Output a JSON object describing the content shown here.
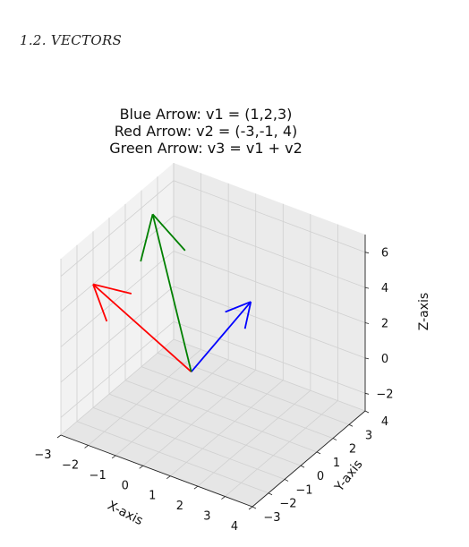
{
  "header": {
    "section": "1.2.   VECTORS"
  },
  "chart_data": {
    "type": "3d-vector",
    "title_lines": [
      "Blue Arrow: v1 = (1,2,3)",
      "Red Arrow: v2 = (-3,-1, 4)",
      "Green Arrow: v3 = v1 + v2"
    ],
    "xlabel": "X-axis",
    "ylabel": "Y-axis",
    "zlabel": "Z-axis",
    "xlim": [
      -3,
      4
    ],
    "ylim": [
      -3,
      4
    ],
    "zlim": [
      -3,
      7
    ],
    "xticks": [
      "−3",
      "−2",
      "−1",
      "0",
      "1",
      "2",
      "3",
      "4"
    ],
    "yticks": [
      "−3",
      "−2",
      "−1",
      "0",
      "1",
      "2",
      "3",
      "4"
    ],
    "zticks": [
      "−2",
      "0",
      "2",
      "4",
      "6"
    ],
    "grid": true,
    "vectors": [
      {
        "name": "v1",
        "color": "#0000ff",
        "origin": [
          0,
          0,
          0
        ],
        "components": [
          1,
          2,
          3
        ]
      },
      {
        "name": "v2",
        "color": "#ff0000",
        "origin": [
          0,
          0,
          0
        ],
        "components": [
          -3,
          -1,
          4
        ]
      },
      {
        "name": "v3",
        "color": "#008000",
        "origin": [
          0,
          0,
          0
        ],
        "components": [
          -2,
          1,
          7
        ]
      }
    ]
  }
}
